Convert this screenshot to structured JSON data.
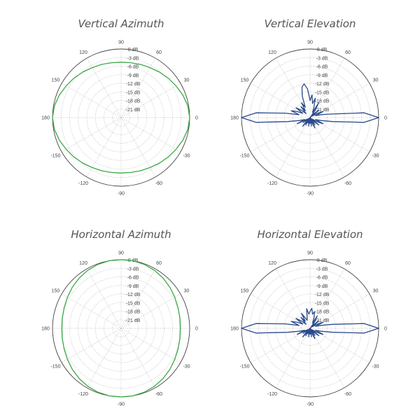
{
  "chart_data": [
    {
      "type": "polar-line",
      "title": "Vertical Azimuth",
      "color": "#3aa845",
      "angle_step_deg": 10,
      "r_range_db": [
        -24,
        0
      ],
      "angle_labels": [
        "0",
        "30",
        "60",
        "90",
        "120",
        "150",
        "180",
        "-150",
        "-120",
        "-90",
        "-60",
        "-30"
      ],
      "db_labels": [
        "0 dB",
        "-3 dB",
        "-6 dB",
        "-9 dB",
        "-12 dB",
        "-15 dB",
        "-18 dB",
        "-21 dB"
      ],
      "values_db": [
        0,
        -0.3,
        -1,
        -1.8,
        -2.5,
        -3.2,
        -3.8,
        -4.2,
        -4.5,
        -4.6,
        -4.5,
        -4.2,
        -3.8,
        -3.2,
        -2.5,
        -1.8,
        -1,
        -0.3,
        0,
        -0.3,
        -1,
        -1.8,
        -2.5,
        -3.2,
        -3.8,
        -4.2,
        -4.5,
        -4.6,
        -4.5,
        -4.2,
        -3.8,
        -3.2,
        -2.5,
        -1.8,
        -1,
        -0.3
      ]
    },
    {
      "type": "polar-line",
      "title": "Vertical Elevation",
      "color": "#2b4a8a",
      "angle_step_deg": 5,
      "r_range_db": [
        -24,
        0
      ],
      "angle_labels": [
        "0",
        "30",
        "60",
        "90",
        "120",
        "150",
        "180",
        "-150",
        "-120",
        "-90",
        "-60",
        "-30"
      ],
      "db_labels": [
        "0 dB",
        "-3 dB",
        "-6 dB",
        "-9 dB",
        "-12 dB",
        "-15 dB",
        "-18 dB",
        "-21 dB"
      ],
      "values_db": [
        0,
        -5,
        -17,
        -20,
        -22,
        -19,
        -21,
        -23,
        -20,
        -22,
        -24,
        -21,
        -18,
        -22,
        -20,
        -17,
        -19,
        -16,
        -18,
        -14,
        -12,
        -13,
        -16,
        -20,
        -18,
        -21,
        -19,
        -22,
        -20,
        -18,
        -21,
        -19,
        -17,
        -20,
        -15,
        -5,
        0,
        -5,
        -16,
        -20,
        -22,
        -19,
        -23,
        -21,
        -24,
        -22,
        -20,
        -23,
        -21,
        -24,
        -22,
        -23,
        -21,
        -24,
        -22,
        -23,
        -21,
        -24,
        -22,
        -20,
        -23,
        -21,
        -24,
        -22,
        -20,
        -23,
        -21,
        -19,
        -22,
        -20,
        -16,
        -5
      ]
    },
    {
      "type": "polar-line",
      "title": "Horizontal Azimuth",
      "color": "#3aa845",
      "angle_step_deg": 10,
      "r_range_db": [
        -24,
        0
      ],
      "angle_labels": [
        "0",
        "30",
        "60",
        "90",
        "120",
        "150",
        "180",
        "-150",
        "-120",
        "-90",
        "-60",
        "-30"
      ],
      "db_labels": [
        "0 dB",
        "-3 dB",
        "-6 dB",
        "-9 dB",
        "-12 dB",
        "-15 dB",
        "-18 dB",
        "-21 dB"
      ],
      "values_db": [
        -3.3,
        -3.1,
        -2.8,
        -2.3,
        -1.7,
        -1.1,
        -0.6,
        -0.2,
        0,
        0,
        0,
        -0.2,
        -0.6,
        -1.1,
        -1.7,
        -2.3,
        -2.8,
        -3.1,
        -3.3,
        -3.1,
        -2.8,
        -2.3,
        -1.7,
        -1.1,
        -0.6,
        -0.2,
        0,
        0,
        0,
        -0.2,
        -0.6,
        -1.1,
        -1.7,
        -2.3,
        -2.8,
        -3.1
      ]
    },
    {
      "type": "polar-line",
      "title": "Horizontal Elevation",
      "color": "#2b4a8a",
      "angle_step_deg": 5,
      "r_range_db": [
        -24,
        0
      ],
      "angle_labels": [
        "0",
        "30",
        "60",
        "90",
        "120",
        "150",
        "180",
        "-150",
        "-120",
        "-90",
        "-60",
        "-30"
      ],
      "db_labels": [
        "0 dB",
        "-3 dB",
        "-6 dB",
        "-9 dB",
        "-12 dB",
        "-15 dB",
        "-18 dB",
        "-21 dB"
      ],
      "values_db": [
        0,
        -5,
        -16,
        -20,
        -22,
        -19,
        -21,
        -23,
        -20,
        -22,
        -24,
        -21,
        -19,
        -22,
        -20,
        -18,
        -19,
        -17,
        -18,
        -19,
        -17,
        -20,
        -21,
        -20,
        -18,
        -21,
        -19,
        -22,
        -20,
        -18,
        -21,
        -19,
        -17,
        -20,
        -15,
        -5,
        0,
        -5,
        -16,
        -20,
        -22,
        -19,
        -23,
        -21,
        -24,
        -22,
        -20,
        -23,
        -21,
        -24,
        -22,
        -23,
        -21,
        -24,
        -22,
        -23,
        -21,
        -24,
        -22,
        -20,
        -23,
        -21,
        -24,
        -22,
        -20,
        -23,
        -21,
        -19,
        -22,
        -20,
        -16,
        -5
      ]
    }
  ]
}
